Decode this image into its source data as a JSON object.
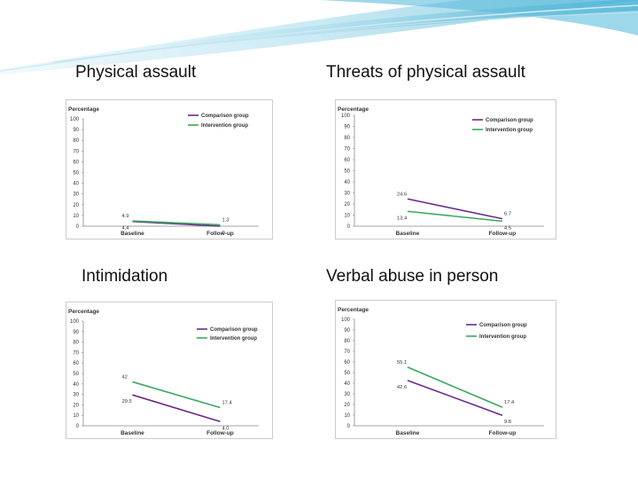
{
  "colors": {
    "comparison": "#6a2a8a",
    "intervention": "#3aa860",
    "axis": "#888888",
    "frame": "#cccccc"
  },
  "panels": [
    {
      "title": "Physical assault"
    },
    {
      "title": "Threats of physical assault"
    },
    {
      "title": "Intimidation"
    },
    {
      "title": "Verbal abuse in person"
    }
  ],
  "chart_data": [
    {
      "type": "line",
      "ylabel": "Percentage",
      "ylim": [
        0,
        100
      ],
      "yticks": [
        "0",
        "10",
        "20",
        "30",
        "40",
        "50",
        "60",
        "70",
        "80",
        "90",
        "100"
      ],
      "categories": [
        "Baseline",
        "Follow-up"
      ],
      "legend_position": "top-right",
      "series": [
        {
          "name": "Comparison group",
          "values": [
            4.4,
            0.0
          ],
          "labels": [
            "4.4",
            "0"
          ]
        },
        {
          "name": "Intervention group",
          "values": [
            4.9,
            1.3
          ],
          "labels": [
            "4.9",
            "1.3"
          ]
        }
      ]
    },
    {
      "type": "line",
      "ylabel": "Percentage",
      "ylim": [
        0,
        100
      ],
      "yticks": [
        "0",
        "10",
        "20",
        "30",
        "40",
        "50",
        "60",
        "70",
        "80",
        "90",
        "100"
      ],
      "categories": [
        "Baseline",
        "Follow-up"
      ],
      "legend_position": "top-right",
      "series": [
        {
          "name": "Comparison group",
          "values": [
            24.6,
            6.7
          ],
          "labels": [
            "24.6",
            "6.7"
          ]
        },
        {
          "name": "Intervention group",
          "values": [
            13.4,
            4.5
          ],
          "labels": [
            "13.4",
            "4.5"
          ]
        }
      ]
    },
    {
      "type": "line",
      "ylabel": "Percentage",
      "ylim": [
        0,
        100
      ],
      "yticks": [
        "0",
        "10",
        "20",
        "30",
        "40",
        "50",
        "60",
        "70",
        "80",
        "90",
        "100"
      ],
      "categories": [
        "Baseline",
        "Follow-up"
      ],
      "legend_position": "top-right",
      "series": [
        {
          "name": "Comparison group",
          "values": [
            29.5,
            4.0
          ],
          "labels": [
            "29.5",
            "4.0"
          ]
        },
        {
          "name": "Intervention group",
          "values": [
            42.0,
            17.4
          ],
          "labels": [
            "42",
            "17.4"
          ]
        }
      ]
    },
    {
      "type": "line",
      "ylabel": "Percentage",
      "ylim": [
        0,
        100
      ],
      "yticks": [
        "0",
        "10",
        "20",
        "30",
        "40",
        "50",
        "60",
        "70",
        "80",
        "90",
        "100"
      ],
      "categories": [
        "Baseline",
        "Follow-up"
      ],
      "legend_position": "top-right",
      "series": [
        {
          "name": "Comparison group",
          "values": [
            42.6,
            9.8
          ],
          "labels": [
            "42.6",
            "9.8"
          ]
        },
        {
          "name": "Intervention group",
          "values": [
            55.1,
            17.4
          ],
          "labels": [
            "55.1",
            "17.4"
          ]
        }
      ]
    }
  ]
}
